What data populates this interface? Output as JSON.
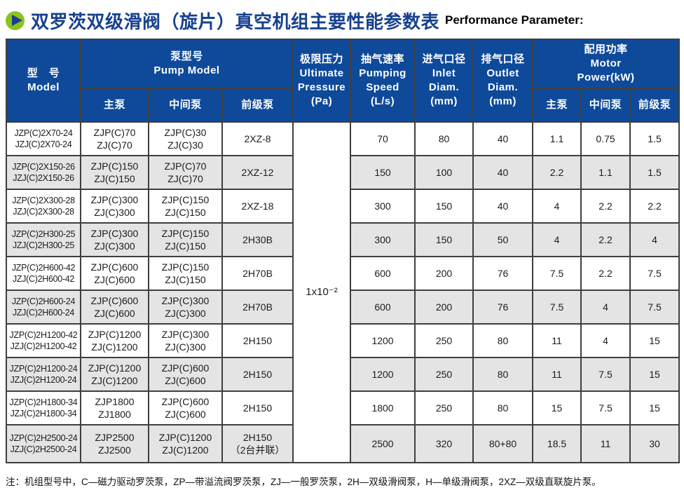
{
  "header": {
    "title_zh": "双罗茨双级滑阀（旋片）真空机组主要性能参数表",
    "title_en": "Performance Parameter:",
    "icon": "play-icon"
  },
  "colors": {
    "header_blue": "#0f4a9a",
    "title_navy": "#17418f",
    "row_alt_gray": "#e4e4e4",
    "icon_green": "#8dc21f",
    "icon_triangle_navy": "#1b3f8f"
  },
  "table": {
    "headers": {
      "model": "型　号\nModel",
      "pump_model": "泵型号\nPump Model",
      "main_pump": "主泵",
      "middle_pump": "中间泵",
      "fore_pump": "前级泵",
      "ultimate_pressure": "极限压力\nUltimate\nPressure\n(Pa)",
      "pumping_speed": "抽气速率\nPumping\nSpeed\n(L/s)",
      "inlet": "进气口径\nInlet\nDiam.\n(mm)",
      "outlet": "排气口径\nOutlet\nDiam.\n(mm)",
      "motor_power": "配用功率\nMotor\nPower(kW)",
      "power_main": "主泵",
      "power_middle": "中间泵",
      "power_fore": "前级泵"
    },
    "ultimate_pressure": "1x10⁻²",
    "rows": [
      {
        "model": "JZP(C)2X70-24\nJZJ(C)2X70-24",
        "main": "ZJP(C)70\nZJ(C)70",
        "middle": "ZJP(C)30\nZJ(C)30",
        "fore": "2XZ-8",
        "speed": "70",
        "inlet": "80",
        "outlet": "40",
        "p_main": "1.1",
        "p_middle": "0.75",
        "p_fore": "1.5"
      },
      {
        "model": "JZP(C)2X150-26\nJZJ(C)2X150-26",
        "main": "ZJP(C)150\nZJ(C)150",
        "middle": "ZJP(C)70\nZJ(C)70",
        "fore": "2XZ-12",
        "speed": "150",
        "inlet": "100",
        "outlet": "40",
        "p_main": "2.2",
        "p_middle": "1.1",
        "p_fore": "1.5"
      },
      {
        "model": "JZP(C)2X300-28\nJZJ(C)2X300-28",
        "main": "ZJP(C)300\nZJ(C)300",
        "middle": "ZJP(C)150\nZJ(C)150",
        "fore": "2XZ-18",
        "speed": "300",
        "inlet": "150",
        "outlet": "40",
        "p_main": "4",
        "p_middle": "2.2",
        "p_fore": "2.2"
      },
      {
        "model": "JZP(C)2H300-25\nJZJ(C)2H300-25",
        "main": "ZJP(C)300\nZJ(C)300",
        "middle": "ZJP(C)150\nZJ(C)150",
        "fore": "2H30B",
        "speed": "300",
        "inlet": "150",
        "outlet": "50",
        "p_main": "4",
        "p_middle": "2.2",
        "p_fore": "4"
      },
      {
        "model": "JZP(C)2H600-42\nJZJ(C)2H600-42",
        "main": "ZJP(C)600\nZJ(C)600",
        "middle": "ZJP(C)150\nZJ(C)150",
        "fore": "2H70B",
        "speed": "600",
        "inlet": "200",
        "outlet": "76",
        "p_main": "7.5",
        "p_middle": "2.2",
        "p_fore": "7.5"
      },
      {
        "model": "JZP(C)2H600-24\nJZJ(C)2H600-24",
        "main": "ZJP(C)600\nZJ(C)600",
        "middle": "ZJP(C)300\nZJ(C)300",
        "fore": "2H70B",
        "speed": "600",
        "inlet": "200",
        "outlet": "76",
        "p_main": "7.5",
        "p_middle": "4",
        "p_fore": "7.5"
      },
      {
        "model": "JZP(C)2H1200-42\nJZJ(C)2H1200-42",
        "main": "ZJP(C)1200\nZJ(C)1200",
        "middle": "ZJP(C)300\nZJ(C)300",
        "fore": "2H150",
        "speed": "1200",
        "inlet": "250",
        "outlet": "80",
        "p_main": "11",
        "p_middle": "4",
        "p_fore": "15"
      },
      {
        "model": "JZP(C)2H1200-24\nJZJ(C)2H1200-24",
        "main": "ZJP(C)1200\nZJ(C)1200",
        "middle": "ZJP(C)600\nZJ(C)600",
        "fore": "2H150",
        "speed": "1200",
        "inlet": "250",
        "outlet": "80",
        "p_main": "11",
        "p_middle": "7.5",
        "p_fore": "15"
      },
      {
        "model": "JZP(C)2H1800-34\nJZJ(C)2H1800-34",
        "main": "ZJP1800\nZJ1800",
        "middle": "ZJP(C)600\nZJ(C)600",
        "fore": "2H150",
        "speed": "1800",
        "inlet": "250",
        "outlet": "80",
        "p_main": "15",
        "p_middle": "7.5",
        "p_fore": "15"
      },
      {
        "model": "JZP(C)2H2500-24\nJZJ(C)2H2500-24",
        "main": "ZJP2500\nZJ2500",
        "middle": "ZJP(C)1200\nZJ(C)1200",
        "fore": "2H150\n（2台并联）",
        "speed": "2500",
        "inlet": "320",
        "outlet": "80+80",
        "p_main": "18.5",
        "p_middle": "11",
        "p_fore": "30"
      }
    ]
  },
  "note": "注：机组型号中，C—磁力驱动罗茨泵，ZP—带溢流阀罗茨泵，ZJ—一般罗茨泵，2H—双级滑阀泵，H—单级滑阀泵，2XZ—双级直联旋片泵。"
}
